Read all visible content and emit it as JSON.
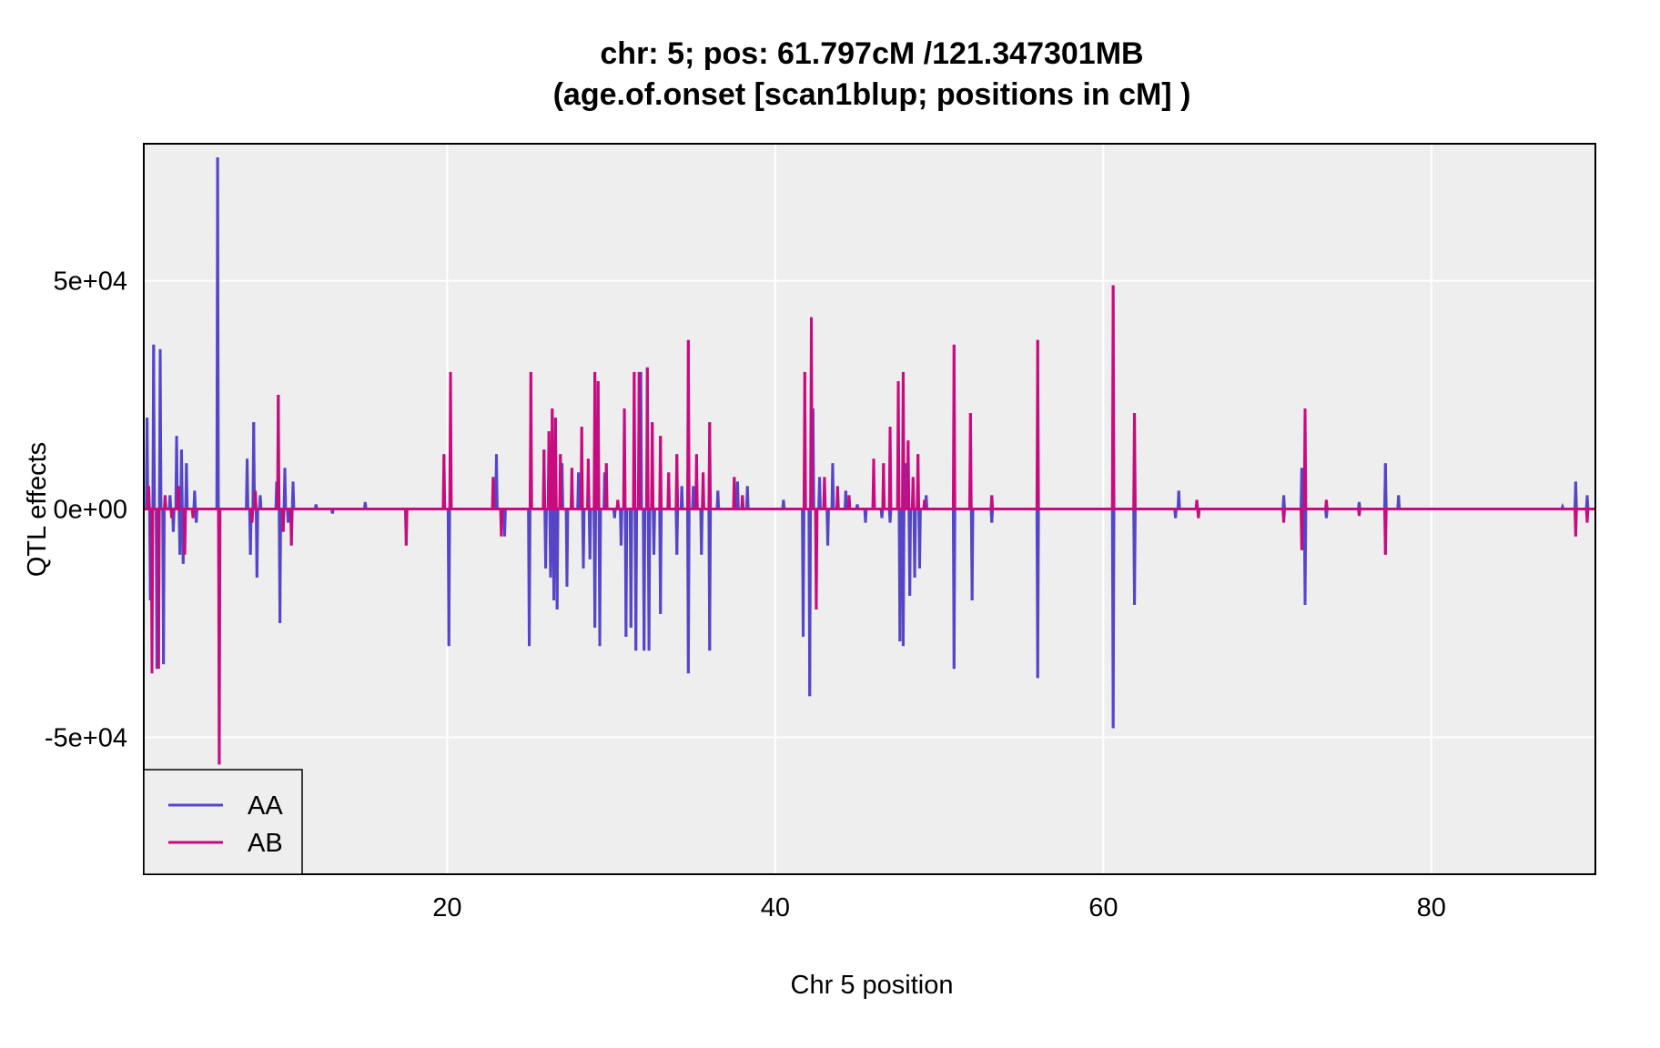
{
  "chart_data": {
    "type": "line",
    "title_line1": "chr: 5; pos: 61.797cM /121.347301MB",
    "title_line2": "(age.of.onset [scan1blup; positions in cM] )",
    "xlabel": "Chr 5 position",
    "ylabel": "QTL effects",
    "xlim": [
      1.5,
      90
    ],
    "ylim": [
      -80000,
      80000
    ],
    "x_ticks": [
      20,
      40,
      60,
      80
    ],
    "x_tick_labels": [
      "20",
      "40",
      "60",
      "80"
    ],
    "y_ticks": [
      50000,
      0,
      -50000
    ],
    "y_tick_labels": [
      "5e+04",
      "0e+00",
      "-5e+04"
    ],
    "grid": true,
    "legend": "bottom-left",
    "series": [
      {
        "name": "AA",
        "color": "#5546C8",
        "spikes": [
          [
            1.7,
            20000
          ],
          [
            1.9,
            -20000
          ],
          [
            2.1,
            36000
          ],
          [
            2.3,
            -35000
          ],
          [
            2.5,
            35000
          ],
          [
            2.7,
            -34000
          ],
          [
            3.1,
            3000
          ],
          [
            3.3,
            -5000
          ],
          [
            3.5,
            16000
          ],
          [
            3.7,
            -10000
          ],
          [
            3.8,
            13000
          ],
          [
            3.9,
            -12000
          ],
          [
            4.1,
            10000
          ],
          [
            4.6,
            4000
          ],
          [
            4.7,
            -3000
          ],
          [
            6.0,
            77000
          ],
          [
            6.1,
            -2000
          ],
          [
            7.8,
            11000
          ],
          [
            8.0,
            -10000
          ],
          [
            8.2,
            19000
          ],
          [
            8.4,
            -15000
          ],
          [
            8.6,
            3000
          ],
          [
            9.6,
            6000
          ],
          [
            9.8,
            -25000
          ],
          [
            10.1,
            9000
          ],
          [
            10.3,
            -3000
          ],
          [
            10.6,
            6000
          ],
          [
            12.0,
            1000
          ],
          [
            13.0,
            -1000
          ],
          [
            15.0,
            1500
          ],
          [
            20.1,
            -30000
          ],
          [
            23.0,
            12000
          ],
          [
            23.5,
            -6000
          ],
          [
            25.0,
            -30000
          ],
          [
            26.0,
            -13000
          ],
          [
            26.3,
            -15000
          ],
          [
            26.5,
            -20000
          ],
          [
            26.7,
            -22000
          ],
          [
            27.0,
            10000
          ],
          [
            27.3,
            -17000
          ],
          [
            28.0,
            8000
          ],
          [
            28.3,
            -13000
          ],
          [
            28.7,
            -11000
          ],
          [
            29.0,
            -26000
          ],
          [
            29.3,
            -30000
          ],
          [
            29.6,
            8000
          ],
          [
            30.2,
            -2000
          ],
          [
            30.6,
            -8000
          ],
          [
            30.9,
            -28000
          ],
          [
            31.2,
            -26000
          ],
          [
            31.5,
            -31000
          ],
          [
            31.8,
            30000
          ],
          [
            32.0,
            -31000
          ],
          [
            32.3,
            -31000
          ],
          [
            32.6,
            -10000
          ],
          [
            33.0,
            -23000
          ],
          [
            33.5,
            3000
          ],
          [
            34.0,
            -10000
          ],
          [
            34.3,
            5000
          ],
          [
            34.7,
            -36000
          ],
          [
            35.0,
            5000
          ],
          [
            35.5,
            -10000
          ],
          [
            36.0,
            -31000
          ],
          [
            36.5,
            4000
          ],
          [
            37.7,
            6000
          ],
          [
            38.3,
            5000
          ],
          [
            40.5,
            2000
          ],
          [
            41.7,
            -28000
          ],
          [
            42.1,
            -41000
          ],
          [
            42.3,
            22000
          ],
          [
            42.7,
            7000
          ],
          [
            43.2,
            -8000
          ],
          [
            43.5,
            10000
          ],
          [
            44.3,
            4000
          ],
          [
            45.0,
            1000
          ],
          [
            45.5,
            -3000
          ],
          [
            46.0,
            5000
          ],
          [
            46.5,
            -2000
          ],
          [
            47.0,
            -3000
          ],
          [
            47.6,
            -29000
          ],
          [
            47.8,
            -30000
          ],
          [
            48.0,
            10000
          ],
          [
            48.2,
            -19000
          ],
          [
            48.5,
            -15000
          ],
          [
            48.8,
            -13000
          ],
          [
            49.2,
            3000
          ],
          [
            50.9,
            -35000
          ],
          [
            52.0,
            -20000
          ],
          [
            53.2,
            -3000
          ],
          [
            56.0,
            -37000
          ],
          [
            60.6,
            -48000
          ],
          [
            61.9,
            -21000
          ],
          [
            64.4,
            -2000
          ],
          [
            64.6,
            4000
          ],
          [
            71.0,
            3000
          ],
          [
            72.1,
            9000
          ],
          [
            72.3,
            -21000
          ],
          [
            73.6,
            -2000
          ],
          [
            75.6,
            1500
          ],
          [
            77.2,
            10000
          ],
          [
            78.0,
            3000
          ],
          [
            88.0,
            500
          ],
          [
            88.8,
            6000
          ],
          [
            89.5,
            3000
          ]
        ]
      },
      {
        "name": "AB",
        "color": "#C80B7F",
        "spikes": [
          [
            1.8,
            5000
          ],
          [
            2.0,
            -36000
          ],
          [
            2.4,
            -35000
          ],
          [
            2.8,
            3000
          ],
          [
            3.2,
            -2000
          ],
          [
            3.6,
            5000
          ],
          [
            4.0,
            -10000
          ],
          [
            4.5,
            -2000
          ],
          [
            6.1,
            -56000
          ],
          [
            8.1,
            -3000
          ],
          [
            8.3,
            4000
          ],
          [
            9.7,
            25000
          ],
          [
            10.0,
            -5000
          ],
          [
            10.5,
            -8000
          ],
          [
            17.5,
            -8000
          ],
          [
            19.8,
            12000
          ],
          [
            20.2,
            30000
          ],
          [
            22.8,
            7000
          ],
          [
            23.3,
            -6000
          ],
          [
            25.1,
            30000
          ],
          [
            25.9,
            13000
          ],
          [
            26.2,
            17000
          ],
          [
            26.4,
            22000
          ],
          [
            26.6,
            20000
          ],
          [
            26.9,
            12000
          ],
          [
            27.6,
            9000
          ],
          [
            28.2,
            18000
          ],
          [
            28.6,
            11000
          ],
          [
            29.0,
            30000
          ],
          [
            29.2,
            28000
          ],
          [
            29.7,
            10000
          ],
          [
            30.4,
            2000
          ],
          [
            30.8,
            22000
          ],
          [
            31.4,
            30000
          ],
          [
            31.7,
            30000
          ],
          [
            32.2,
            31000
          ],
          [
            32.5,
            19000
          ],
          [
            33.0,
            16000
          ],
          [
            33.5,
            8000
          ],
          [
            34.0,
            12000
          ],
          [
            34.7,
            37000
          ],
          [
            35.2,
            12000
          ],
          [
            35.6,
            8000
          ],
          [
            36.0,
            19000
          ],
          [
            37.5,
            7000
          ],
          [
            38.0,
            3000
          ],
          [
            41.8,
            30000
          ],
          [
            42.2,
            42000
          ],
          [
            42.5,
            -22000
          ],
          [
            43.0,
            7000
          ],
          [
            43.8,
            5000
          ],
          [
            44.5,
            3000
          ],
          [
            46.0,
            11000
          ],
          [
            46.6,
            10000
          ],
          [
            47.0,
            18000
          ],
          [
            47.5,
            28000
          ],
          [
            47.8,
            30000
          ],
          [
            48.1,
            15000
          ],
          [
            48.4,
            7000
          ],
          [
            48.7,
            12000
          ],
          [
            49.1,
            2000
          ],
          [
            50.9,
            36000
          ],
          [
            51.9,
            21000
          ],
          [
            53.2,
            3000
          ],
          [
            56.0,
            37000
          ],
          [
            60.6,
            49000
          ],
          [
            61.9,
            21000
          ],
          [
            65.7,
            2000
          ],
          [
            65.8,
            -2000
          ],
          [
            71.0,
            -3000
          ],
          [
            72.1,
            -9000
          ],
          [
            72.3,
            22000
          ],
          [
            73.6,
            2000
          ],
          [
            75.6,
            -1500
          ],
          [
            77.2,
            -10000
          ],
          [
            88.8,
            -6000
          ],
          [
            89.5,
            -3000
          ]
        ]
      }
    ]
  }
}
